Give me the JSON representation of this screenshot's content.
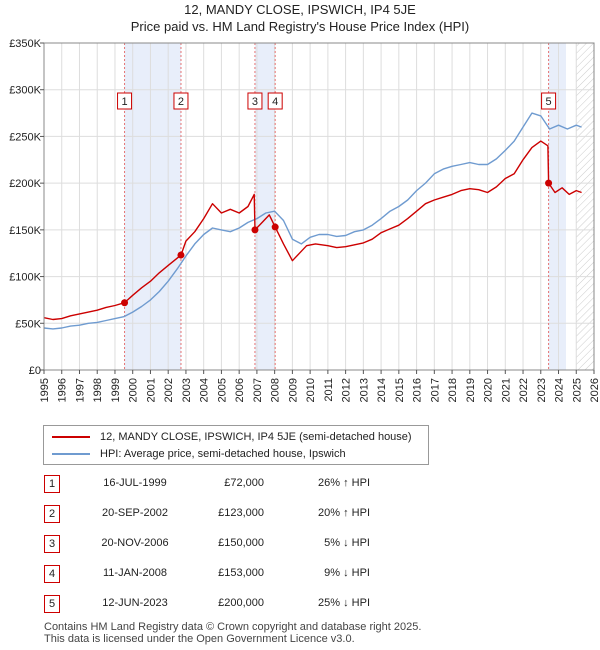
{
  "title_line1": "12, MANDY CLOSE, IPSWICH, IP4 5JE",
  "title_line2": "Price paid vs. HM Land Registry's House Price Index (HPI)",
  "colors": {
    "property": "#cc0000",
    "hpi": "#6f9bd0",
    "shade": "#e8eefa",
    "marker_line": "#e57373",
    "grid": "#dddddd"
  },
  "legend": {
    "property_label": "12, MANDY CLOSE, IPSWICH, IP4 5JE (semi-detached house)",
    "hpi_label": "HPI: Average price, semi-detached house, Ipswich"
  },
  "transactions": [
    {
      "num": "1",
      "date": "16-JUL-1999",
      "price": "£72,000",
      "hpi": "26% ↑ HPI"
    },
    {
      "num": "2",
      "date": "20-SEP-2002",
      "price": "£123,000",
      "hpi": "20% ↑ HPI"
    },
    {
      "num": "3",
      "date": "20-NOV-2006",
      "price": "£150,000",
      "hpi": "5% ↓ HPI"
    },
    {
      "num": "4",
      "date": "11-JAN-2008",
      "price": "£153,000",
      "hpi": "9% ↓ HPI"
    },
    {
      "num": "5",
      "date": "12-JUN-2023",
      "price": "£200,000",
      "hpi": "25% ↓ HPI"
    }
  ],
  "footer_line1": "Contains HM Land Registry data © Crown copyright and database right 2025.",
  "footer_line2": "This data is licensed under the Open Government Licence v3.0.",
  "chart_data": {
    "type": "line",
    "title": "12, MANDY CLOSE, IPSWICH, IP4 5JE",
    "subtitle": "Price paid vs. HM Land Registry's House Price Index (HPI)",
    "xlabel": "",
    "ylabel": "",
    "xlim": [
      1995,
      2026
    ],
    "ylim": [
      0,
      350000
    ],
    "grid": true,
    "y_ticks": [
      {
        "value": 0,
        "label": "£0"
      },
      {
        "value": 50000,
        "label": "£50K"
      },
      {
        "value": 100000,
        "label": "£100K"
      },
      {
        "value": 150000,
        "label": "£150K"
      },
      {
        "value": 200000,
        "label": "£200K"
      },
      {
        "value": 250000,
        "label": "£250K"
      },
      {
        "value": 300000,
        "label": "£300K"
      },
      {
        "value": 350000,
        "label": "£350K"
      }
    ],
    "x_ticks": [
      "1995",
      "1996",
      "1997",
      "1998",
      "1999",
      "2000",
      "2001",
      "2002",
      "2003",
      "2004",
      "2005",
      "2006",
      "2007",
      "2008",
      "2009",
      "2010",
      "2011",
      "2012",
      "2013",
      "2014",
      "2015",
      "2016",
      "2017",
      "2018",
      "2019",
      "2020",
      "2021",
      "2022",
      "2023",
      "2024",
      "2025",
      "2026"
    ],
    "shaded_periods": [
      [
        1999.54,
        2002.72
      ],
      [
        2006.89,
        2008.03
      ],
      [
        2023.44,
        2024.42
      ]
    ],
    "hatched_period": [
      2025.0,
      2026.0
    ],
    "sales": [
      {
        "label": "1",
        "x": 1999.54,
        "y": 72000
      },
      {
        "label": "2",
        "x": 2002.72,
        "y": 123000
      },
      {
        "label": "3",
        "x": 2006.89,
        "y": 150000
      },
      {
        "label": "4",
        "x": 2008.03,
        "y": 153000
      },
      {
        "label": "5",
        "x": 2023.44,
        "y": 200000
      }
    ],
    "series": [
      {
        "name": "12, MANDY CLOSE, IPSWICH, IP4 5JE (semi-detached house)",
        "x": [
          1995.0,
          1995.5,
          1996.0,
          1996.5,
          1997.0,
          1997.5,
          1998.0,
          1998.5,
          1999.0,
          1999.54,
          2000.0,
          2000.5,
          2001.0,
          2001.5,
          2002.0,
          2002.72,
          2003.0,
          2003.5,
          2004.0,
          2004.5,
          2005.0,
          2005.5,
          2006.0,
          2006.5,
          2006.85,
          2006.89,
          2007.3,
          2007.7,
          2008.03,
          2008.5,
          2009.0,
          2009.4,
          2009.8,
          2010.3,
          2011.0,
          2011.5,
          2012.0,
          2012.5,
          2013.0,
          2013.5,
          2014.0,
          2014.5,
          2015.0,
          2015.5,
          2016.0,
          2016.5,
          2017.0,
          2017.5,
          2018.0,
          2018.5,
          2019.0,
          2019.5,
          2020.0,
          2020.5,
          2021.0,
          2021.5,
          2022.0,
          2022.5,
          2023.0,
          2023.4,
          2023.44,
          2023.8,
          2024.2,
          2024.6,
          2025.0,
          2025.3
        ],
        "values": [
          56000,
          54000,
          55000,
          58000,
          60000,
          62000,
          64000,
          67000,
          69000,
          72000,
          80000,
          88000,
          95000,
          104000,
          112000,
          123000,
          138000,
          148000,
          162000,
          178000,
          168000,
          172000,
          168000,
          175000,
          188000,
          150000,
          158000,
          166000,
          153000,
          135000,
          117000,
          125000,
          133000,
          135000,
          133000,
          131000,
          132000,
          134000,
          136000,
          140000,
          147000,
          151000,
          155000,
          162000,
          170000,
          178000,
          182000,
          185000,
          188000,
          192000,
          194000,
          193000,
          190000,
          196000,
          205000,
          210000,
          225000,
          238000,
          245000,
          240000,
          200000,
          190000,
          195000,
          188000,
          192000,
          190000
        ]
      },
      {
        "name": "HPI: Average price, semi-detached house, Ipswich",
        "x": [
          1995.0,
          1995.5,
          1996.0,
          1996.5,
          1997.0,
          1997.5,
          1998.0,
          1998.5,
          1999.0,
          1999.5,
          2000.0,
          2000.5,
          2001.0,
          2001.5,
          2002.0,
          2002.5,
          2003.0,
          2003.5,
          2004.0,
          2004.5,
          2005.0,
          2005.5,
          2006.0,
          2006.5,
          2007.0,
          2007.5,
          2008.0,
          2008.5,
          2009.0,
          2009.5,
          2010.0,
          2010.5,
          2011.0,
          2011.5,
          2012.0,
          2012.5,
          2013.0,
          2013.5,
          2014.0,
          2014.5,
          2015.0,
          2015.5,
          2016.0,
          2016.5,
          2017.0,
          2017.5,
          2018.0,
          2018.5,
          2019.0,
          2019.5,
          2020.0,
          2020.5,
          2021.0,
          2021.5,
          2022.0,
          2022.5,
          2023.0,
          2023.5,
          2024.0,
          2024.5,
          2025.0,
          2025.3
        ],
        "values": [
          45000,
          44000,
          45000,
          47000,
          48000,
          50000,
          51000,
          53000,
          55000,
          57000,
          62000,
          68000,
          75000,
          84000,
          95000,
          108000,
          122000,
          135000,
          145000,
          152000,
          150000,
          148000,
          152000,
          158000,
          162000,
          168000,
          170000,
          160000,
          140000,
          135000,
          142000,
          145000,
          145000,
          143000,
          144000,
          148000,
          150000,
          155000,
          162000,
          170000,
          175000,
          182000,
          192000,
          200000,
          210000,
          215000,
          218000,
          220000,
          222000,
          220000,
          220000,
          226000,
          235000,
          245000,
          260000,
          275000,
          272000,
          258000,
          262000,
          258000,
          262000,
          260000
        ]
      }
    ]
  }
}
